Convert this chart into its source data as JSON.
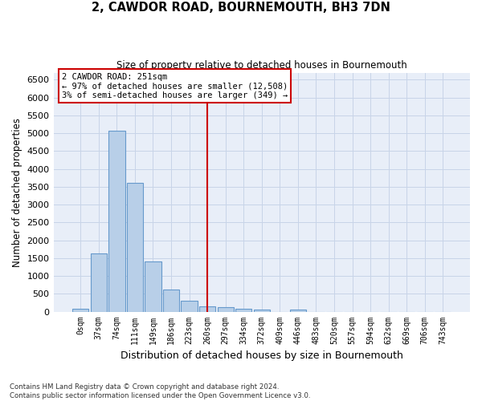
{
  "title": "2, CAWDOR ROAD, BOURNEMOUTH, BH3 7DN",
  "subtitle": "Size of property relative to detached houses in Bournemouth",
  "xlabel": "Distribution of detached houses by size in Bournemouth",
  "ylabel": "Number of detached properties",
  "footer_line1": "Contains HM Land Registry data © Crown copyright and database right 2024.",
  "footer_line2": "Contains public sector information licensed under the Open Government Licence v3.0.",
  "bar_labels": [
    "0sqm",
    "37sqm",
    "74sqm",
    "111sqm",
    "149sqm",
    "186sqm",
    "223sqm",
    "260sqm",
    "297sqm",
    "334sqm",
    "372sqm",
    "409sqm",
    "446sqm",
    "483sqm",
    "520sqm",
    "557sqm",
    "594sqm",
    "632sqm",
    "669sqm",
    "706sqm",
    "743sqm"
  ],
  "bar_values": [
    70,
    1640,
    5080,
    3600,
    1400,
    620,
    310,
    150,
    120,
    70,
    55,
    0,
    50,
    0,
    0,
    0,
    0,
    0,
    0,
    0,
    0
  ],
  "bar_color": "#b8cfe8",
  "bar_edge_color": "#6699cc",
  "grid_color": "#c8d4e8",
  "background_color": "#e8eef8",
  "vline_x_idx": 7,
  "vline_color": "#cc0000",
  "annotation_line1": "2 CAWDOR ROAD: 251sqm",
  "annotation_line2": "← 97% of detached houses are smaller (12,508)",
  "annotation_line3": "3% of semi-detached houses are larger (349) →",
  "annotation_box_color": "#cc0000",
  "ylim": [
    0,
    6700
  ],
  "yticks": [
    0,
    500,
    1000,
    1500,
    2000,
    2500,
    3000,
    3500,
    4000,
    4500,
    5000,
    5500,
    6000,
    6500
  ]
}
